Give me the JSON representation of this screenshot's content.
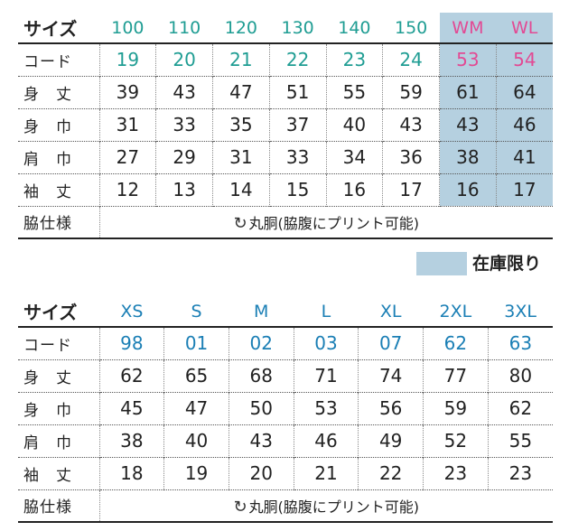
{
  "table1": {
    "header_label": "サイズ",
    "sizes": [
      "100",
      "110",
      "120",
      "130",
      "140",
      "150",
      "WM",
      "WL"
    ],
    "code_label": "コード",
    "codes": [
      "19",
      "20",
      "21",
      "22",
      "23",
      "24",
      "53",
      "54"
    ],
    "rows": [
      {
        "label": "身　丈",
        "values": [
          "39",
          "43",
          "47",
          "51",
          "55",
          "59",
          "61",
          "64"
        ]
      },
      {
        "label": "身　巾",
        "values": [
          "31",
          "33",
          "35",
          "37",
          "40",
          "43",
          "43",
          "46"
        ]
      },
      {
        "label": "肩　巾",
        "values": [
          "27",
          "29",
          "31",
          "33",
          "34",
          "36",
          "38",
          "41"
        ]
      },
      {
        "label": "袖　丈",
        "values": [
          "12",
          "13",
          "14",
          "15",
          "16",
          "17",
          "16",
          "17"
        ]
      }
    ],
    "footer_label": "脇仕様",
    "footer_note": "丸胴(脇腹にプリント可能)"
  },
  "legend": {
    "text": "在庫限り",
    "color": "#b5d0e0"
  },
  "table2": {
    "header_label": "サイズ",
    "sizes": [
      "XS",
      "S",
      "M",
      "L",
      "XL",
      "2XL",
      "3XL"
    ],
    "code_label": "コード",
    "codes": [
      "98",
      "01",
      "02",
      "03",
      "07",
      "62",
      "63"
    ],
    "rows": [
      {
        "label": "身　丈",
        "values": [
          "62",
          "65",
          "68",
          "71",
          "74",
          "77",
          "80"
        ]
      },
      {
        "label": "身　巾",
        "values": [
          "45",
          "47",
          "50",
          "53",
          "56",
          "59",
          "62"
        ]
      },
      {
        "label": "肩　巾",
        "values": [
          "38",
          "40",
          "43",
          "46",
          "49",
          "52",
          "55"
        ]
      },
      {
        "label": "袖　丈",
        "values": [
          "18",
          "19",
          "20",
          "21",
          "22",
          "23",
          "23"
        ]
      }
    ],
    "footer_label": "脇仕様",
    "footer_note": "丸胴(脇腹にプリント可能)"
  },
  "colors": {
    "teal": "#1f9d93",
    "blue": "#1b7fb5",
    "pink": "#e24a94",
    "limited_stock": "#b5d0e0"
  },
  "icons": {
    "round_body": "circular-arrows-icon"
  }
}
